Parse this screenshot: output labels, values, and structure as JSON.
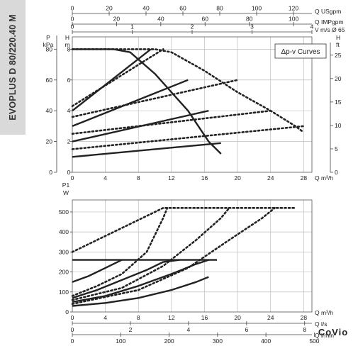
{
  "product_label": "EVOPLUS D 80/220.40 M",
  "watermark": "CoVio",
  "colors": {
    "curve": "#222222",
    "sidebar": "#d9d9d9",
    "watermark": "#c8c8c8"
  },
  "top_axes": [
    {
      "label": "Q USgpm",
      "min": 0,
      "max": 130,
      "ticks": [
        0,
        20,
        40,
        60,
        80,
        100,
        120
      ]
    },
    {
      "label": "Q IMPgpm",
      "min": 0,
      "max": 108.3,
      "ticks": [
        0,
        20,
        40,
        60,
        80,
        100
      ]
    },
    {
      "label": "V m/s Ø 65",
      "min": 0,
      "max": 4.0,
      "ticks": [
        0,
        1,
        2,
        3,
        4
      ]
    }
  ],
  "bottom_axes": [
    {
      "label": "Q l/s",
      "min": 0,
      "max": 8.25,
      "ticks": [
        0,
        2,
        4,
        6,
        8
      ]
    },
    {
      "label": "Q l/min",
      "min": 0,
      "max": 495,
      "ticks": [
        0,
        100,
        200,
        300,
        400,
        500
      ]
    }
  ],
  "chart_data": [
    {
      "type": "line",
      "legend_box": "Δp-v Curves",
      "x_unit": "Q m³/h",
      "xlim": [
        0,
        29
      ],
      "x_ticks": [
        0,
        4,
        8,
        12,
        16,
        20,
        24,
        28
      ],
      "y_axes": {
        "pressure": {
          "label": "P",
          "unit": "kPa",
          "ylim": [
            0,
            88
          ],
          "ticks": [
            0,
            20,
            40,
            60,
            80
          ]
        },
        "head": {
          "label": "H",
          "unit": "m",
          "ylim": [
            0,
            8.8
          ],
          "ticks": [
            0,
            2,
            4,
            6,
            8
          ]
        },
        "head_ft": {
          "label": "H",
          "unit": "ft",
          "ylim": [
            0,
            28.9
          ],
          "ticks": [
            0,
            5,
            10,
            15,
            20,
            25
          ]
        }
      },
      "series": [
        {
          "style": "solid",
          "points": [
            [
              0,
              1.0
            ],
            [
              18,
              1.9
            ]
          ]
        },
        {
          "style": "solid",
          "points": [
            [
              0,
              2.0
            ],
            [
              16.5,
              4.0
            ]
          ]
        },
        {
          "style": "solid",
          "points": [
            [
              0,
              3.0
            ],
            [
              14,
              6.0
            ]
          ]
        },
        {
          "style": "solid",
          "points": [
            [
              0,
              4.0
            ],
            [
              9.5,
              8.0
            ]
          ]
        },
        {
          "style": "solid",
          "points": [
            [
              0,
              8.0
            ],
            [
              5,
              8.0
            ],
            [
              7,
              7.8
            ],
            [
              10,
              6.4
            ],
            [
              14,
              4.0
            ],
            [
              16.5,
              2.0
            ],
            [
              18,
              1.2
            ]
          ]
        },
        {
          "style": "dotted",
          "points": [
            [
              0,
              1.5
            ],
            [
              28,
              3.0
            ]
          ]
        },
        {
          "style": "dotted",
          "points": [
            [
              0,
              2.5
            ],
            [
              24,
              4.0
            ]
          ]
        },
        {
          "style": "dotted",
          "points": [
            [
              0,
              3.6
            ],
            [
              20,
              6.0
            ]
          ]
        },
        {
          "style": "dotted",
          "points": [
            [
              0,
              4.3
            ],
            [
              11,
              8.0
            ]
          ]
        },
        {
          "style": "dotted",
          "points": [
            [
              0,
              8.0
            ],
            [
              4,
              8.0
            ],
            [
              10,
              8.0
            ],
            [
              12,
              7.8
            ],
            [
              16,
              6.6
            ],
            [
              20,
              5.2
            ],
            [
              24,
              4.0
            ],
            [
              27,
              3.0
            ],
            [
              28,
              2.6
            ]
          ]
        }
      ]
    },
    {
      "type": "line",
      "x_unit": "Q m³/h",
      "xlim": [
        0,
        29
      ],
      "x_ticks": [
        0,
        4,
        8,
        12,
        16,
        20,
        24,
        28
      ],
      "y_axis": {
        "label": "P1",
        "unit": "W",
        "ylim": [
          0,
          560
        ],
        "ticks": [
          0,
          100,
          200,
          300,
          400,
          500
        ]
      },
      "series": [
        {
          "style": "solid",
          "points": [
            [
              0,
              260
            ],
            [
              17.5,
              260
            ]
          ]
        },
        {
          "style": "solid",
          "points": [
            [
              0,
              150
            ],
            [
              2,
              180
            ],
            [
              4,
              220
            ],
            [
              6,
              260
            ]
          ]
        },
        {
          "style": "solid",
          "points": [
            [
              0,
              70
            ],
            [
              3,
              110
            ],
            [
              6,
              160
            ],
            [
              9,
              210
            ],
            [
              11,
              250
            ],
            [
              13,
              260
            ]
          ]
        },
        {
          "style": "solid",
          "points": [
            [
              0,
              50
            ],
            [
              4,
              80
            ],
            [
              8,
              130
            ],
            [
              12,
              190
            ],
            [
              15,
              240
            ],
            [
              16.5,
              260
            ]
          ]
        },
        {
          "style": "solid",
          "points": [
            [
              0,
              30
            ],
            [
              4,
              45
            ],
            [
              8,
              70
            ],
            [
              12,
              110
            ],
            [
              15,
              150
            ],
            [
              16.5,
              175
            ]
          ]
        },
        {
          "style": "dotted",
          "points": [
            [
              0,
              300
            ],
            [
              11,
              520
            ],
            [
              27,
              520
            ]
          ]
        },
        {
          "style": "dotted",
          "points": [
            [
              0,
              80
            ],
            [
              3,
              130
            ],
            [
              6,
              190
            ],
            [
              9,
              300
            ],
            [
              11,
              470
            ],
            [
              11.5,
              520
            ]
          ]
        },
        {
          "style": "dotted",
          "points": [
            [
              0,
              60
            ],
            [
              6,
              120
            ],
            [
              11,
              230
            ],
            [
              15,
              360
            ],
            [
              18,
              470
            ],
            [
              19,
              520
            ]
          ]
        },
        {
          "style": "dotted",
          "points": [
            [
              0,
              40
            ],
            [
              8,
              110
            ],
            [
              14,
              220
            ],
            [
              19,
              360
            ],
            [
              23,
              470
            ],
            [
              24.5,
              520
            ]
          ]
        }
      ]
    }
  ]
}
